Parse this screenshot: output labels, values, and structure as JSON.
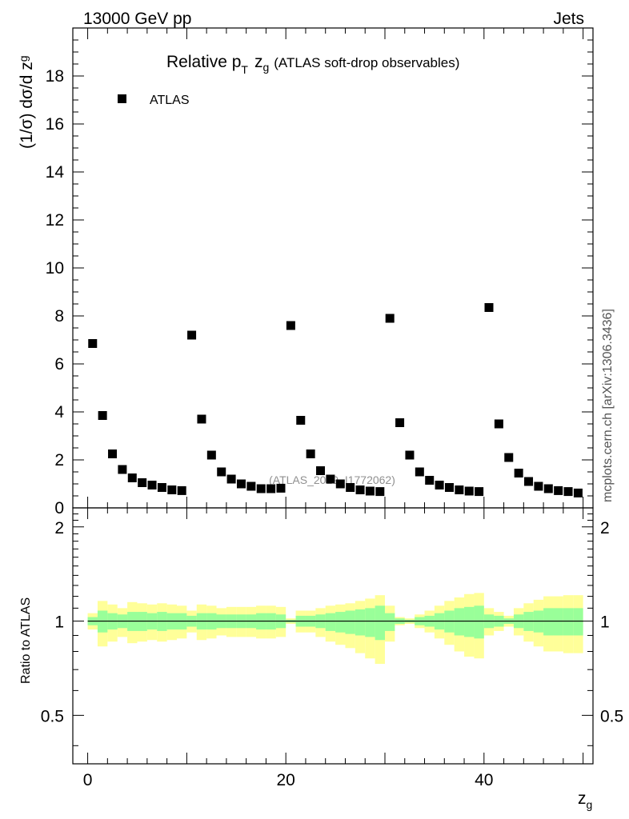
{
  "header": {
    "left": "13000 GeV pp",
    "right": "Jets"
  },
  "plot": {
    "title_main": "Relative p",
    "title_sub": "T",
    "title_z": "z",
    "title_g": "g",
    "title_rest": "(ATLAS soft-drop observables)",
    "ylabel_main": "(1/σ) dσ/d z",
    "ylabel_sub": "g",
    "ratio_ylabel": "Ratio to ATLAS",
    "xlabel": "z",
    "xlabel_sub": "g",
    "watermark": "(ATLAS_2019_I1772062)",
    "side_text": "mcplots.cern.ch [arXiv:1306.3436]",
    "legend_label": "ATLAS"
  },
  "chart_data": [
    {
      "type": "scatter",
      "title": "Relative pT zg (ATLAS soft-drop observables)",
      "xlabel": "zg",
      "ylabel": "(1/σ) dσ/d zg",
      "xlim": [
        -1.5,
        51
      ],
      "ylim": [
        0,
        20
      ],
      "yticks": [
        0,
        2,
        4,
        6,
        8,
        10,
        12,
        14,
        16,
        18
      ],
      "ytick_labels": [
        "0",
        "2",
        "4",
        "6",
        "8",
        "10",
        "12",
        "14",
        "16",
        "18"
      ],
      "legend_position": "top-left",
      "series": [
        {
          "name": "ATLAS",
          "color": "#000000",
          "marker": "square",
          "x": [
            0.5,
            1.5,
            2.5,
            3.5,
            4.5,
            5.5,
            6.5,
            7.5,
            8.5,
            9.5,
            10.5,
            11.5,
            12.5,
            13.5,
            14.5,
            15.5,
            16.5,
            17.5,
            18.5,
            19.5,
            20.5,
            21.5,
            22.5,
            23.5,
            24.5,
            25.5,
            26.5,
            27.5,
            28.5,
            29.5,
            30.5,
            31.5,
            32.5,
            33.5,
            34.5,
            35.5,
            36.5,
            37.5,
            38.5,
            39.5,
            40.5,
            41.5,
            42.5,
            43.5,
            44.5,
            45.5,
            46.5,
            47.5,
            48.5,
            49.5
          ],
          "y": [
            6.85,
            3.85,
            2.25,
            1.6,
            1.25,
            1.05,
            0.95,
            0.85,
            0.75,
            0.72,
            7.2,
            3.7,
            2.2,
            1.5,
            1.2,
            1.0,
            0.9,
            0.8,
            0.8,
            0.82,
            7.6,
            3.65,
            2.25,
            1.55,
            1.2,
            1.0,
            0.85,
            0.75,
            0.7,
            0.68,
            7.9,
            3.55,
            2.2,
            1.5,
            1.15,
            0.95,
            0.85,
            0.75,
            0.7,
            0.68,
            8.35,
            3.5,
            2.1,
            1.45,
            1.1,
            0.9,
            0.8,
            0.72,
            0.68,
            0.62
          ]
        }
      ]
    },
    {
      "type": "area",
      "ylabel": "Ratio to ATLAS",
      "xlabel": "zg",
      "xlim": [
        -1.5,
        51
      ],
      "ylim": [
        0.35,
        2.3
      ],
      "yticks": [
        0.5,
        1,
        2
      ],
      "ytick_labels": [
        "0.5",
        "1",
        "2"
      ],
      "xticks": [
        0,
        20,
        40
      ],
      "xtick_labels": [
        "0",
        "20",
        "40"
      ],
      "reference_line": 1,
      "series": [
        {
          "name": "",
          "color": "#ffff99",
          "lower": [
            0.94,
            0.83,
            0.86,
            0.89,
            0.85,
            0.86,
            0.87,
            0.86,
            0.87,
            0.88,
            0.92,
            0.87,
            0.88,
            0.9,
            0.89,
            0.89,
            0.89,
            0.88,
            0.88,
            0.89,
            0.98,
            0.92,
            0.92,
            0.89,
            0.86,
            0.84,
            0.82,
            0.79,
            0.76,
            0.73,
            0.86,
            0.97,
            0.98,
            0.95,
            0.92,
            0.88,
            0.84,
            0.8,
            0.77,
            0.76,
            0.9,
            0.93,
            0.96,
            0.9,
            0.86,
            0.83,
            0.8,
            0.8,
            0.79,
            0.79
          ],
          "upper": [
            1.06,
            1.16,
            1.13,
            1.1,
            1.15,
            1.14,
            1.13,
            1.14,
            1.13,
            1.12,
            1.08,
            1.13,
            1.12,
            1.1,
            1.11,
            1.11,
            1.11,
            1.12,
            1.12,
            1.11,
            1.02,
            1.08,
            1.08,
            1.1,
            1.12,
            1.13,
            1.14,
            1.16,
            1.18,
            1.21,
            1.12,
            1.03,
            1.02,
            1.05,
            1.08,
            1.12,
            1.16,
            1.19,
            1.22,
            1.23,
            1.1,
            1.07,
            1.04,
            1.1,
            1.14,
            1.17,
            1.2,
            1.2,
            1.21,
            1.21
          ]
        },
        {
          "name": "",
          "color": "#99ff99",
          "lower": [
            0.97,
            0.92,
            0.94,
            0.95,
            0.93,
            0.93,
            0.94,
            0.93,
            0.94,
            0.94,
            0.96,
            0.94,
            0.94,
            0.95,
            0.95,
            0.95,
            0.95,
            0.94,
            0.94,
            0.95,
            0.99,
            0.96,
            0.96,
            0.95,
            0.93,
            0.92,
            0.91,
            0.9,
            0.89,
            0.87,
            0.93,
            0.98,
            0.99,
            0.97,
            0.96,
            0.94,
            0.92,
            0.9,
            0.89,
            0.88,
            0.95,
            0.96,
            0.98,
            0.95,
            0.93,
            0.92,
            0.9,
            0.9,
            0.9,
            0.9
          ],
          "upper": [
            1.03,
            1.08,
            1.06,
            1.05,
            1.07,
            1.07,
            1.06,
            1.07,
            1.06,
            1.06,
            1.04,
            1.06,
            1.06,
            1.05,
            1.05,
            1.05,
            1.05,
            1.06,
            1.06,
            1.05,
            1.01,
            1.04,
            1.04,
            1.05,
            1.06,
            1.07,
            1.08,
            1.09,
            1.1,
            1.12,
            1.06,
            1.02,
            1.01,
            1.03,
            1.04,
            1.06,
            1.08,
            1.1,
            1.11,
            1.12,
            1.05,
            1.04,
            1.02,
            1.05,
            1.07,
            1.08,
            1.1,
            1.1,
            1.1,
            1.1
          ]
        }
      ]
    }
  ]
}
